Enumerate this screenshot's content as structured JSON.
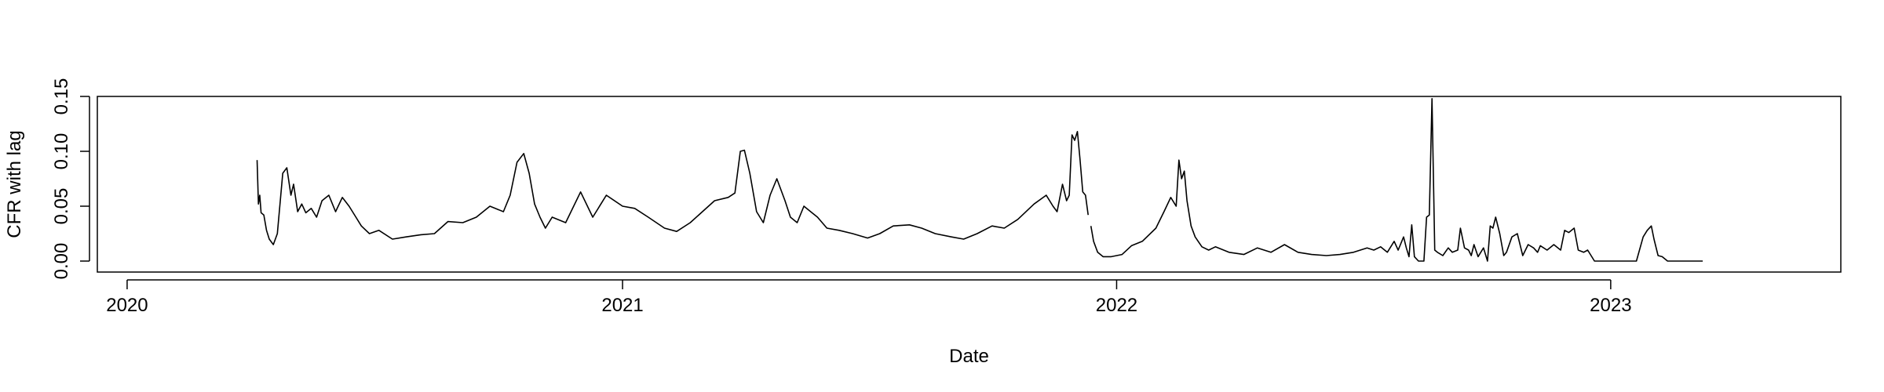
{
  "chart_data": {
    "type": "line",
    "title": "",
    "xlabel": "Date",
    "ylabel": "CFR with lag",
    "x_axis": {
      "kind": "date",
      "min": "2019-12-10",
      "max": "2023-06-20"
    },
    "ylim": [
      -0.01,
      0.15
    ],
    "x_ticks": [
      {
        "value": "2020-01-01",
        "label": "2020"
      },
      {
        "value": "2021-01-01",
        "label": "2021"
      },
      {
        "value": "2022-01-01",
        "label": "2022"
      },
      {
        "value": "2023-01-01",
        "label": "2023"
      }
    ],
    "y_ticks": [
      {
        "value": 0.0,
        "label": "0.00"
      },
      {
        "value": 0.05,
        "label": "0.05"
      },
      {
        "value": 0.1,
        "label": "0.10"
      },
      {
        "value": 0.15,
        "label": "0.15"
      }
    ],
    "grid": false,
    "legend": "none",
    "line_color": "#000000",
    "series": [
      {
        "x": [
          "2020-04-06",
          "2020-04-07",
          "2020-04-08",
          "2020-04-09",
          "2020-04-11",
          "2020-04-13",
          "2020-04-15",
          "2020-04-18",
          "2020-04-21",
          "2020-04-25",
          "2020-04-28",
          "2020-05-01",
          "2020-05-03",
          "2020-05-06",
          "2020-05-09",
          "2020-05-12",
          "2020-05-16",
          "2020-05-20",
          "2020-05-24",
          "2020-05-29",
          "2020-06-03",
          "2020-06-08",
          "2020-06-13",
          "2020-06-18",
          "2020-06-22",
          "2020-06-28",
          "2020-07-05",
          "2020-07-15",
          "2020-07-25",
          "2020-08-05",
          "2020-08-15",
          "2020-08-25",
          "2020-09-05",
          "2020-09-15",
          "2020-09-25",
          "2020-10-05",
          "2020-10-10",
          "2020-10-15",
          "2020-10-20",
          "2020-10-24",
          "2020-10-28",
          "2020-11-01",
          "2020-11-05",
          "2020-11-10",
          "2020-11-20",
          "2020-12-01",
          "2020-12-10",
          "2020-12-20",
          "2021-01-01",
          "2021-01-10",
          "2021-01-20",
          "2021-02-01",
          "2021-02-10",
          "2021-02-20",
          "2021-03-01",
          "2021-03-10",
          "2021-03-20",
          "2021-03-25",
          "2021-03-29",
          "2021-04-01",
          "2021-04-05",
          "2021-04-10",
          "2021-04-15",
          "2021-04-20",
          "2021-04-25",
          "2021-05-01",
          "2021-05-05",
          "2021-05-10",
          "2021-05-15",
          "2021-05-20",
          "2021-05-25",
          "2021-06-01",
          "2021-06-10",
          "2021-06-20",
          "2021-07-01",
          "2021-07-10",
          "2021-07-20",
          "2021-08-01",
          "2021-08-10",
          "2021-08-20",
          "2021-09-01",
          "2021-09-10",
          "2021-09-20",
          "2021-10-01",
          "2021-10-10",
          "2021-10-20",
          "2021-11-01",
          "2021-11-10",
          "2021-11-15",
          "2021-11-18",
          "2021-11-22",
          "2021-11-25",
          "2021-11-27",
          "2021-11-29",
          "2021-12-01",
          "2021-12-03",
          "2021-12-05",
          "2021-12-07",
          "2021-12-09",
          "2021-12-11",
          null,
          "2021-12-13",
          "2021-12-15",
          "2021-12-18",
          "2021-12-22",
          "2021-12-28",
          "2022-01-05",
          "2022-01-12",
          "2022-01-20",
          "2022-01-30",
          "2022-02-05",
          "2022-02-10",
          "2022-02-14",
          "2022-02-16",
          "2022-02-18",
          "2022-02-20",
          "2022-02-22",
          "2022-02-25",
          "2022-02-28",
          "2022-03-05",
          "2022-03-10",
          "2022-03-15",
          "2022-03-25",
          "2022-04-05",
          "2022-04-15",
          "2022-04-25",
          "2022-05-05",
          "2022-05-15",
          "2022-05-25",
          "2022-06-05",
          "2022-06-15",
          "2022-06-25",
          "2022-07-05",
          "2022-07-10",
          "2022-07-15",
          "2022-07-20",
          "2022-07-25",
          "2022-07-28",
          "2022-08-01",
          "2022-08-03",
          "2022-08-05",
          "2022-08-07",
          "2022-08-09",
          "2022-08-12",
          "2022-08-14",
          "2022-08-16",
          "2022-08-18",
          "2022-08-20",
          "2022-08-22",
          "2022-08-24",
          "2022-08-26",
          "2022-08-30",
          "2022-09-03",
          "2022-09-06",
          "2022-09-10",
          "2022-09-12",
          "2022-09-15",
          "2022-09-18",
          "2022-09-20",
          "2022-09-22",
          "2022-09-25",
          "2022-09-29",
          "2022-10-02",
          "2022-10-04",
          "2022-10-06",
          "2022-10-08",
          "2022-10-11",
          "2022-10-14",
          "2022-10-16",
          "2022-10-20",
          "2022-10-24",
          "2022-10-28",
          "2022-11-01",
          "2022-11-05",
          "2022-11-08",
          "2022-11-10",
          "2022-11-15",
          "2022-11-20",
          "2022-11-25",
          "2022-11-28",
          "2022-12-01",
          "2022-12-05",
          "2022-12-08",
          "2022-12-12",
          "2022-12-15",
          "2022-12-20",
          "2023-01-05",
          "2023-01-20",
          "2023-01-25",
          "2023-01-28",
          "2023-01-31",
          "2023-02-02",
          "2023-02-05",
          "2023-02-08",
          "2023-02-12",
          "2023-03-01",
          "2023-03-10"
        ],
        "y": [
          0.092,
          0.052,
          0.06,
          0.044,
          0.042,
          0.028,
          0.02,
          0.015,
          0.025,
          0.08,
          0.085,
          0.06,
          0.07,
          0.045,
          0.052,
          0.044,
          0.048,
          0.04,
          0.055,
          0.06,
          0.045,
          0.058,
          0.05,
          0.04,
          0.032,
          0.025,
          0.028,
          0.02,
          0.022,
          0.024,
          0.025,
          0.036,
          0.035,
          0.04,
          0.05,
          0.045,
          0.06,
          0.09,
          0.098,
          0.08,
          0.052,
          0.04,
          0.03,
          0.04,
          0.035,
          0.063,
          0.04,
          0.06,
          0.05,
          0.048,
          0.04,
          0.03,
          0.027,
          0.035,
          0.045,
          0.055,
          0.058,
          0.062,
          0.1,
          0.101,
          0.08,
          0.045,
          0.035,
          0.06,
          0.075,
          0.055,
          0.04,
          0.035,
          0.05,
          0.045,
          0.04,
          0.03,
          0.028,
          0.025,
          0.021,
          0.025,
          0.032,
          0.033,
          0.03,
          0.025,
          0.022,
          0.02,
          0.025,
          0.032,
          0.03,
          0.038,
          0.052,
          0.06,
          0.05,
          0.045,
          0.07,
          0.055,
          0.06,
          0.115,
          0.11,
          0.118,
          0.092,
          0.063,
          0.06,
          0.042,
          null,
          0.032,
          0.018,
          0.008,
          0.004,
          0.004,
          0.006,
          0.014,
          0.018,
          0.03,
          0.045,
          0.058,
          0.05,
          0.092,
          0.075,
          0.082,
          0.055,
          0.032,
          0.022,
          0.013,
          0.01,
          0.013,
          0.008,
          0.006,
          0.012,
          0.008,
          0.015,
          0.008,
          0.006,
          0.005,
          0.006,
          0.008,
          0.012,
          0.01,
          0.013,
          0.008,
          0.018,
          0.01,
          0.022,
          0.012,
          0.004,
          0.033,
          0.004,
          0.0,
          0.0,
          0.0,
          0.04,
          0.042,
          0.148,
          0.01,
          0.008,
          0.005,
          0.012,
          0.008,
          0.01,
          0.03,
          0.012,
          0.01,
          0.005,
          0.015,
          0.004,
          0.012,
          0.0,
          0.032,
          0.03,
          0.04,
          0.025,
          0.005,
          0.008,
          0.022,
          0.025,
          0.005,
          0.015,
          0.012,
          0.008,
          0.014,
          0.01,
          0.015,
          0.01,
          0.028,
          0.026,
          0.03,
          0.01,
          0.008,
          0.01,
          0.0,
          0.0,
          0.0,
          0.022,
          0.028,
          0.032,
          0.02,
          0.005,
          0.004,
          0.0,
          0.0,
          0.0
        ]
      }
    ]
  }
}
